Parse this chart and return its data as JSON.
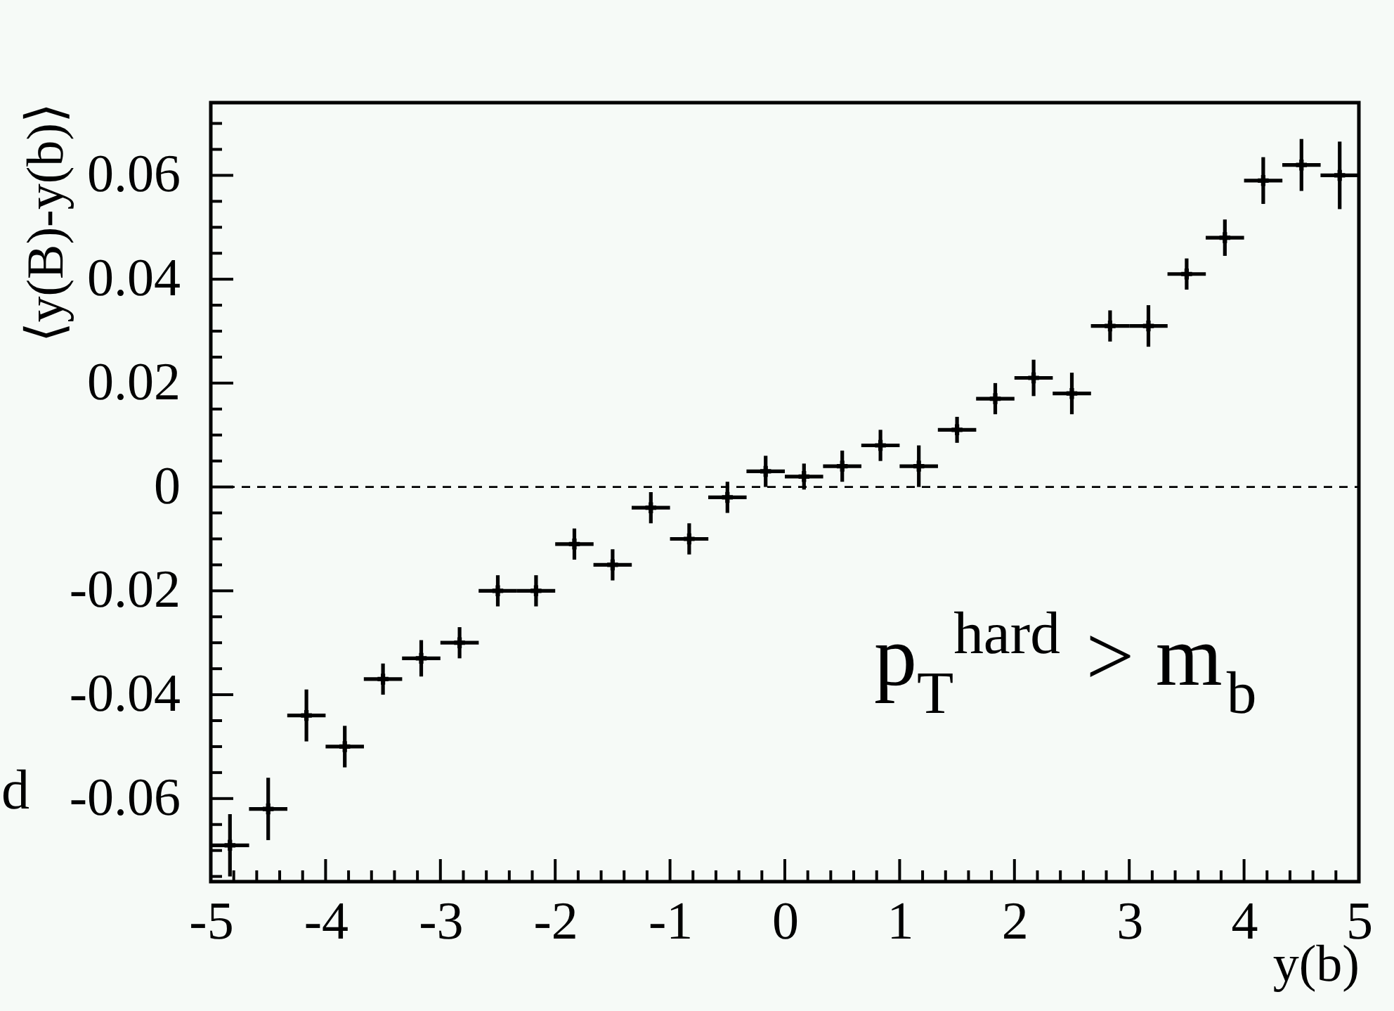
{
  "chart_data": {
    "type": "scatter",
    "marker": "cross",
    "color": "#000000",
    "xlabel": "y(b)",
    "ylabel": "⟨y(B)-y(b)⟩",
    "x": [
      -4.833,
      -4.5,
      -4.167,
      -3.833,
      -3.5,
      -3.167,
      -2.833,
      -2.5,
      -2.167,
      -1.833,
      -1.5,
      -1.167,
      -0.833,
      -0.5,
      -0.167,
      0.167,
      0.5,
      0.833,
      1.167,
      1.5,
      1.833,
      2.167,
      2.5,
      2.833,
      3.167,
      3.5,
      3.833,
      4.167,
      4.5,
      4.833
    ],
    "values": [
      -0.069,
      -0.062,
      -0.044,
      -0.05,
      -0.037,
      -0.033,
      -0.03,
      -0.02,
      -0.02,
      -0.011,
      -0.015,
      -0.004,
      -0.01,
      -0.002,
      0.003,
      0.002,
      0.004,
      0.008,
      0.004,
      0.011,
      0.017,
      0.021,
      0.018,
      0.031,
      0.031,
      0.041,
      0.048,
      0.059,
      0.062,
      0.06
    ],
    "errors": [
      0.006,
      0.006,
      0.005,
      0.004,
      0.003,
      0.0035,
      0.003,
      0.003,
      0.003,
      0.003,
      0.003,
      0.003,
      0.003,
      0.003,
      0.003,
      0.0025,
      0.003,
      0.003,
      0.004,
      0.0025,
      0.003,
      0.0035,
      0.004,
      0.003,
      0.004,
      0.003,
      0.0035,
      0.0045,
      0.005,
      0.0065
    ],
    "xerrors": [
      0.167,
      0.167,
      0.167,
      0.167,
      0.167,
      0.167,
      0.167,
      0.167,
      0.167,
      0.167,
      0.167,
      0.167,
      0.167,
      0.167,
      0.167,
      0.167,
      0.167,
      0.167,
      0.167,
      0.167,
      0.167,
      0.167,
      0.167,
      0.167,
      0.167,
      0.167,
      0.167,
      0.167,
      0.167,
      0.167
    ],
    "xlim": [
      -5,
      5
    ],
    "ylim": [
      -0.076,
      0.074
    ],
    "xticks": [
      -5,
      {
        "value": -4.8,
        "label": null
      },
      {
        "value": -4.6,
        "label": null
      },
      {
        "value": -4.4,
        "label": null
      },
      {
        "value": -4.2,
        "label": null
      },
      -4,
      {
        "value": -3.8,
        "label": null
      },
      {
        "value": -3.6,
        "label": null
      },
      {
        "value": -3.4,
        "label": null
      },
      {
        "value": -3.2,
        "label": null
      },
      -3,
      {
        "value": -2.8,
        "label": null
      },
      {
        "value": -2.6,
        "label": null
      },
      {
        "value": -2.4,
        "label": null
      },
      {
        "value": -2.2,
        "label": null
      },
      -2,
      {
        "value": -1.8,
        "label": null
      },
      {
        "value": -1.6,
        "label": null
      },
      {
        "value": -1.4,
        "label": null
      },
      {
        "value": -1.2,
        "label": null
      },
      -1,
      {
        "value": -0.8,
        "label": null
      },
      {
        "value": -0.6,
        "label": null
      },
      {
        "value": -0.4,
        "label": null
      },
      {
        "value": -0.2,
        "label": null
      },
      0,
      {
        "value": 0.2,
        "label": null
      },
      {
        "value": 0.4,
        "label": null
      },
      {
        "value": 0.6,
        "label": null
      },
      {
        "value": 0.8,
        "label": null
      },
      1,
      {
        "value": 1.2,
        "label": null
      },
      {
        "value": 1.4,
        "label": null
      },
      {
        "value": 1.6,
        "label": null
      },
      {
        "value": 1.8,
        "label": null
      },
      2,
      {
        "value": 2.2,
        "label": null
      },
      {
        "value": 2.4,
        "label": null
      },
      {
        "value": 2.6,
        "label": null
      },
      {
        "value": 2.8,
        "label": null
      },
      3,
      {
        "value": 3.2,
        "label": null
      },
      {
        "value": 3.4,
        "label": null
      },
      {
        "value": 3.6,
        "label": null
      },
      {
        "value": 3.8,
        "label": null
      },
      4,
      {
        "value": 4.2,
        "label": null
      },
      {
        "value": 4.4,
        "label": null
      },
      {
        "value": 4.6,
        "label": null
      },
      {
        "value": 4.8,
        "label": null
      },
      5
    ],
    "yticks": [
      {
        "value": -0.075,
        "label": null
      },
      {
        "value": -0.07,
        "label": null
      },
      {
        "value": -0.065,
        "label": null
      },
      -0.06,
      {
        "value": -0.055,
        "label": null
      },
      {
        "value": -0.05,
        "label": null
      },
      {
        "value": -0.045,
        "label": null
      },
      -0.04,
      {
        "value": -0.035,
        "label": null
      },
      {
        "value": -0.03,
        "label": null
      },
      {
        "value": -0.025,
        "label": null
      },
      -0.02,
      {
        "value": -0.015,
        "label": null
      },
      {
        "value": -0.01,
        "label": null
      },
      {
        "value": -0.005,
        "label": null
      },
      0,
      {
        "value": 0.005,
        "label": null
      },
      {
        "value": 0.01,
        "label": null
      },
      {
        "value": 0.015,
        "label": null
      },
      0.02,
      {
        "value": 0.025,
        "label": null
      },
      {
        "value": 0.03,
        "label": null
      },
      {
        "value": 0.035,
        "label": null
      },
      0.04,
      {
        "value": 0.045,
        "label": null
      },
      {
        "value": 0.05,
        "label": null
      },
      {
        "value": 0.055,
        "label": null
      },
      0.06,
      {
        "value": 0.065,
        "label": null
      },
      {
        "value": 0.07,
        "label": null
      }
    ],
    "grid": false,
    "ref_lines": [
      {
        "axis": "y",
        "value": 0,
        "color": "#000000",
        "line_style": "dashed"
      }
    ],
    "annotations": [
      "p$_{T}$$^{hard}$ > m$_{b}$",
      "d"
    ]
  }
}
